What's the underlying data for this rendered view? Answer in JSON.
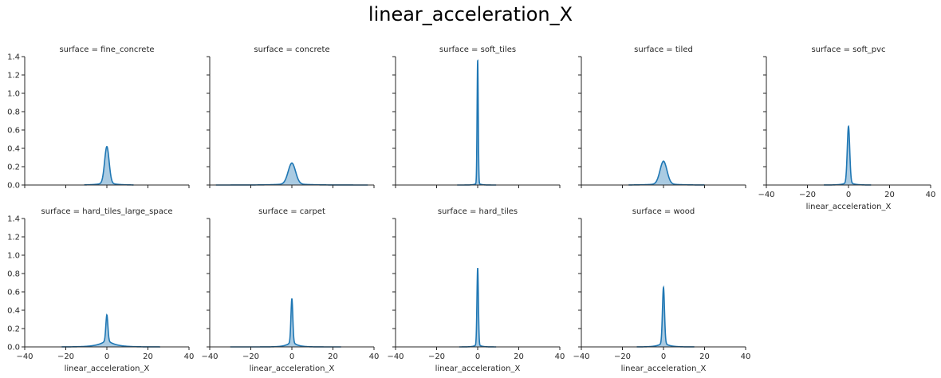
{
  "figure_title": "linear_acceleration_X",
  "colors": {
    "line": "#1f77b4",
    "fill": "#1f77b4",
    "axis": "#262626"
  },
  "chart_data": [
    {
      "type": "area",
      "title": "surface = fine_concrete",
      "xlabel": "",
      "ylabel": "",
      "xlim": [
        -40,
        40
      ],
      "ylim": [
        0,
        1.4
      ],
      "xticks": [
        -40,
        -20,
        0,
        20,
        40
      ],
      "xtick_labels_visible": false,
      "yticks": [
        0,
        0.2,
        0.4,
        0.6,
        0.8,
        1.0,
        1.2,
        1.4
      ],
      "ytick_labels_visible": true,
      "ytick_labels": [
        "0.0",
        "0.2",
        "0.4",
        "0.6",
        "0.8",
        "1.0",
        "1.2",
        "1.4"
      ],
      "density": {
        "peak_x": 0,
        "peak_y": 0.42,
        "core_width": 1.1,
        "tail_width": 3.5,
        "tail_weight": 0.08,
        "range": [
          -11,
          13
        ]
      },
      "grid": false
    },
    {
      "type": "area",
      "title": "surface = concrete",
      "xlabel": "",
      "ylabel": "",
      "xlim": [
        -40,
        40
      ],
      "ylim": [
        0,
        1.4
      ],
      "xticks": [
        -40,
        -20,
        0,
        20,
        40
      ],
      "xtick_labels_visible": false,
      "yticks": [
        0,
        0.2,
        0.4,
        0.6,
        0.8,
        1.0,
        1.2,
        1.4
      ],
      "ytick_labels_visible": false,
      "density": {
        "peak_x": 0,
        "peak_y": 0.24,
        "core_width": 1.8,
        "tail_width": 6,
        "tail_weight": 0.08,
        "range": [
          -37,
          37
        ]
      },
      "grid": false
    },
    {
      "type": "area",
      "title": "surface = soft_tiles",
      "xlabel": "",
      "ylabel": "",
      "xlim": [
        -40,
        40
      ],
      "ylim": [
        0,
        1.4
      ],
      "xticks": [
        -40,
        -20,
        0,
        20,
        40
      ],
      "xtick_labels_visible": false,
      "yticks": [
        0,
        0.2,
        0.4,
        0.6,
        0.8,
        1.0,
        1.2,
        1.4
      ],
      "ytick_labels_visible": false,
      "density": {
        "peak_x": 0,
        "peak_y": 1.36,
        "core_width": 0.28,
        "tail_width": 1.2,
        "tail_weight": 0.02,
        "range": [
          -10,
          9
        ]
      },
      "grid": false
    },
    {
      "type": "area",
      "title": "surface = tiled",
      "xlabel": "",
      "ylabel": "",
      "xlim": [
        -40,
        40
      ],
      "ylim": [
        0,
        1.4
      ],
      "xticks": [
        -40,
        -20,
        0,
        20,
        40
      ],
      "xtick_labels_visible": false,
      "yticks": [
        0,
        0.2,
        0.4,
        0.6,
        0.8,
        1.0,
        1.2,
        1.4
      ],
      "ytick_labels_visible": false,
      "density": {
        "peak_x": 0,
        "peak_y": 0.26,
        "core_width": 1.7,
        "tail_width": 5,
        "tail_weight": 0.08,
        "range": [
          -17,
          20
        ]
      },
      "grid": false
    },
    {
      "type": "area",
      "title": "surface = soft_pvc",
      "xlabel": "linear_acceleration_X",
      "ylabel": "",
      "xlim": [
        -40,
        40
      ],
      "ylim": [
        0,
        1.4
      ],
      "xticks": [
        -40,
        -20,
        0,
        20,
        40
      ],
      "xtick_labels_visible": true,
      "xtick_labels": [
        "−40",
        "−20",
        "0",
        "20",
        "40"
      ],
      "yticks": [
        0,
        0.2,
        0.4,
        0.6,
        0.8,
        1.0,
        1.2,
        1.4
      ],
      "ytick_labels_visible": false,
      "density": {
        "peak_x": 0,
        "peak_y": 0.64,
        "core_width": 0.6,
        "tail_width": 2.2,
        "tail_weight": 0.06,
        "range": [
          -12,
          11
        ]
      },
      "grid": false
    },
    {
      "type": "area",
      "title": "surface = hard_tiles_large_space",
      "xlabel": "linear_acceleration_X",
      "ylabel": "",
      "xlim": [
        -40,
        40
      ],
      "ylim": [
        0,
        1.4
      ],
      "xticks": [
        -40,
        -20,
        0,
        20,
        40
      ],
      "xtick_labels_visible": true,
      "xtick_labels": [
        "−40",
        "−20",
        "0",
        "20",
        "40"
      ],
      "yticks": [
        0,
        0.2,
        0.4,
        0.6,
        0.8,
        1.0,
        1.2,
        1.4
      ],
      "ytick_labels_visible": true,
      "ytick_labels": [
        "0.0",
        "0.2",
        "0.4",
        "0.6",
        "0.8",
        "1.0",
        "1.2",
        "1.4"
      ],
      "density": {
        "peak_x": 0,
        "peak_y": 0.35,
        "core_width": 0.5,
        "tail_width": 4,
        "tail_weight": 0.22,
        "range": [
          -22,
          26
        ]
      },
      "grid": false
    },
    {
      "type": "area",
      "title": "surface = carpet",
      "xlabel": "linear_acceleration_X",
      "ylabel": "",
      "xlim": [
        -40,
        40
      ],
      "ylim": [
        0,
        1.4
      ],
      "xticks": [
        -40,
        -20,
        0,
        20,
        40
      ],
      "xtick_labels_visible": true,
      "xtick_labels": [
        "−40",
        "−20",
        "0",
        "20",
        "40"
      ],
      "yticks": [
        0,
        0.2,
        0.4,
        0.6,
        0.8,
        1.0,
        1.2,
        1.4
      ],
      "ytick_labels_visible": false,
      "density": {
        "peak_x": 0,
        "peak_y": 0.53,
        "core_width": 0.45,
        "tail_width": 2.5,
        "tail_weight": 0.12,
        "range": [
          -30,
          24
        ]
      },
      "grid": false
    },
    {
      "type": "area",
      "title": "surface = hard_tiles",
      "xlabel": "linear_acceleration_X",
      "ylabel": "",
      "xlim": [
        -40,
        40
      ],
      "ylim": [
        0,
        1.4
      ],
      "xticks": [
        -40,
        -20,
        0,
        20,
        40
      ],
      "xtick_labels_visible": true,
      "xtick_labels": [
        "−40",
        "−20",
        "0",
        "20",
        "40"
      ],
      "yticks": [
        0,
        0.2,
        0.4,
        0.6,
        0.8,
        1.0,
        1.2,
        1.4
      ],
      "ytick_labels_visible": false,
      "density": {
        "peak_x": 0,
        "peak_y": 0.86,
        "core_width": 0.35,
        "tail_width": 1.4,
        "tail_weight": 0.04,
        "range": [
          -9,
          9
        ]
      },
      "grid": false
    },
    {
      "type": "area",
      "title": "surface = wood",
      "xlabel": "linear_acceleration_X",
      "ylabel": "",
      "xlim": [
        -40,
        40
      ],
      "ylim": [
        0,
        1.4
      ],
      "xticks": [
        -40,
        -20,
        0,
        20,
        40
      ],
      "xtick_labels_visible": true,
      "xtick_labels": [
        "−40",
        "−20",
        "0",
        "20",
        "40"
      ],
      "yticks": [
        0,
        0.2,
        0.4,
        0.6,
        0.8,
        1.0,
        1.2,
        1.4
      ],
      "ytick_labels_visible": false,
      "density": {
        "peak_x": 0,
        "peak_y": 0.65,
        "core_width": 0.5,
        "tail_width": 2.5,
        "tail_weight": 0.08,
        "range": [
          -13,
          15
        ]
      },
      "grid": false
    }
  ]
}
